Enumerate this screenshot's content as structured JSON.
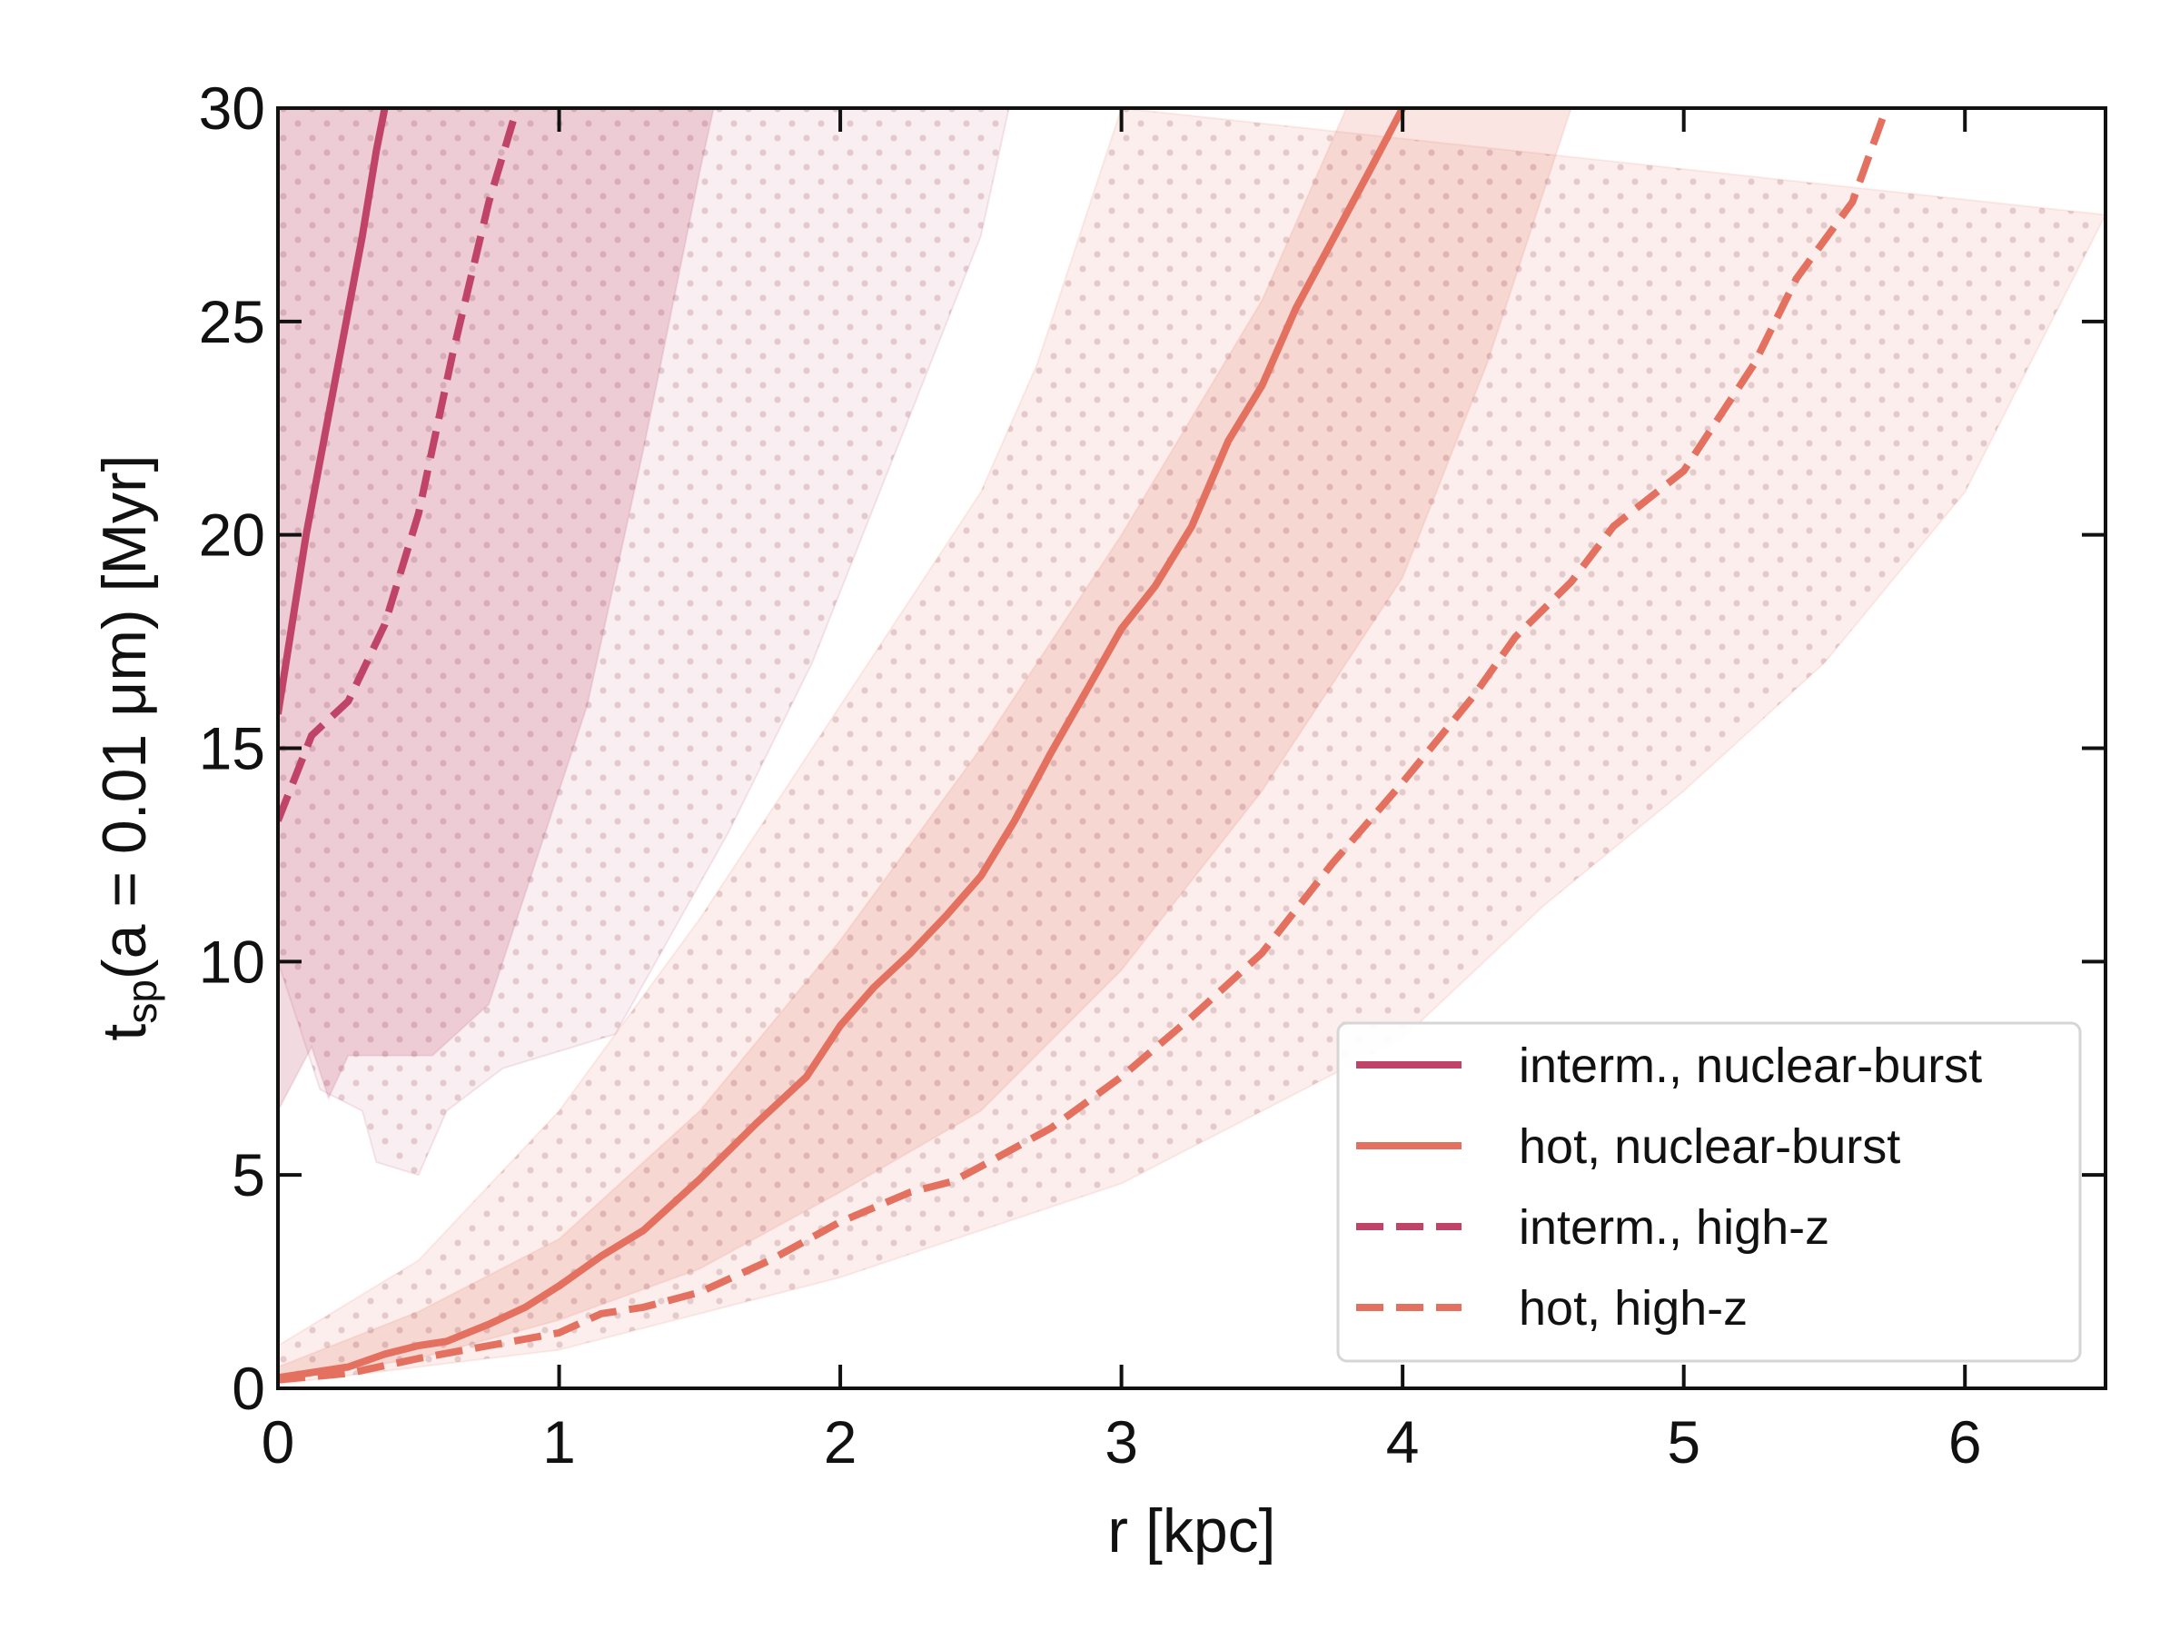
{
  "chart_data": {
    "type": "line",
    "title": "",
    "xlabel": "r [kpc]",
    "ylabel": {
      "prefix": "t",
      "subscript": "sp",
      "suffix": "(a = 0.01 μm) [Myr]"
    },
    "xlim": [
      0,
      6.5
    ],
    "ylim": [
      0,
      30
    ],
    "xticks": [
      0,
      1,
      2,
      3,
      4,
      5,
      6
    ],
    "yticks": [
      0,
      5,
      10,
      15,
      20,
      25,
      30
    ],
    "xtick_labels": [
      "0",
      "1",
      "2",
      "3",
      "4",
      "5",
      "6"
    ],
    "ytick_labels": [
      "0",
      "5",
      "10",
      "15",
      "20",
      "25",
      "30"
    ],
    "grid": false,
    "legend_position": "bottom-right",
    "colors": {
      "interm": "#c04468",
      "hot": "#e4705f"
    },
    "bands": [
      {
        "name": "interm-nuclear-burst-band",
        "color": "#c04468",
        "opacity": 0.2,
        "hatch": "none",
        "lower": [
          [
            0,
            6.5
          ],
          [
            0.12,
            8.0
          ],
          [
            0.18,
            6.8
          ],
          [
            0.25,
            7.8
          ],
          [
            0.55,
            7.8
          ],
          [
            0.75,
            9.0
          ],
          [
            0.9,
            12.0
          ],
          [
            1.1,
            16.0
          ],
          [
            1.3,
            22.0
          ],
          [
            1.5,
            28.5
          ],
          [
            1.55,
            30
          ]
        ],
        "upper": [
          [
            0,
            30
          ],
          [
            1.99,
            30
          ]
        ]
      },
      {
        "name": "interm-high-z-band",
        "color": "#c04468",
        "opacity": 0.09,
        "hatch": "dots",
        "lower": [
          [
            0,
            10.0
          ],
          [
            0.15,
            7.0
          ],
          [
            0.3,
            6.5
          ],
          [
            0.35,
            5.3
          ],
          [
            0.5,
            5.0
          ],
          [
            0.6,
            6.5
          ],
          [
            0.8,
            7.5
          ],
          [
            1.2,
            8.3
          ],
          [
            1.6,
            13.0
          ],
          [
            1.9,
            17.0
          ],
          [
            2.2,
            22.0
          ],
          [
            2.5,
            27.0
          ],
          [
            2.6,
            30
          ]
        ],
        "upper": [
          [
            0,
            30
          ],
          [
            2.65,
            30
          ]
        ]
      },
      {
        "name": "hot-nuclear-burst-band",
        "color": "#e4705f",
        "opacity": 0.18,
        "hatch": "none",
        "lower": [
          [
            0,
            0.2
          ],
          [
            0.5,
            0.7
          ],
          [
            1.0,
            1.6
          ],
          [
            1.5,
            2.8
          ],
          [
            2.0,
            4.6
          ],
          [
            2.5,
            6.5
          ],
          [
            3.0,
            9.8
          ],
          [
            3.5,
            14.0
          ],
          [
            4.0,
            19.0
          ],
          [
            4.3,
            24.0
          ],
          [
            4.6,
            30
          ]
        ],
        "upper": [
          [
            0,
            0.5
          ],
          [
            0.5,
            1.8
          ],
          [
            1.0,
            3.5
          ],
          [
            1.5,
            6.5
          ],
          [
            2.0,
            10.5
          ],
          [
            2.5,
            15.0
          ],
          [
            3.0,
            20.0
          ],
          [
            3.5,
            25.5
          ],
          [
            3.8,
            30
          ]
        ]
      },
      {
        "name": "hot-high-z-band",
        "color": "#e4705f",
        "opacity": 0.12,
        "hatch": "dots",
        "lower": [
          [
            0,
            0.1
          ],
          [
            1.0,
            0.9
          ],
          [
            2.0,
            2.6
          ],
          [
            3.0,
            4.8
          ],
          [
            4.0,
            8.2
          ],
          [
            4.5,
            11.3
          ],
          [
            5.0,
            14.0
          ],
          [
            5.5,
            17.0
          ],
          [
            6.0,
            21.0
          ],
          [
            6.5,
            27.5
          ]
        ],
        "upper": [
          [
            0,
            1.0
          ],
          [
            0.5,
            3.0
          ],
          [
            1.0,
            6.5
          ],
          [
            1.5,
            11.0
          ],
          [
            2.0,
            16.0
          ],
          [
            2.5,
            21.0
          ],
          [
            2.7,
            24.0
          ],
          [
            3.0,
            30
          ]
        ]
      }
    ],
    "series": [
      {
        "name": "interm., nuclear-burst",
        "color": "#c04468",
        "dash": "solid",
        "x": [
          0,
          0.1,
          0.2,
          0.3,
          0.35,
          0.38
        ],
        "y": [
          15.8,
          20.0,
          23.5,
          27.0,
          29.0,
          30.0
        ]
      },
      {
        "name": "hot, nuclear-burst",
        "color": "#e4705f",
        "dash": "solid",
        "x": [
          0,
          0.25,
          0.38,
          0.5,
          0.6,
          0.75,
          0.88,
          1.0,
          1.15,
          1.3,
          1.5,
          1.7,
          1.88,
          2.0,
          2.12,
          2.25,
          2.38,
          2.5,
          2.62,
          2.75,
          2.88,
          3.0,
          3.12,
          3.25,
          3.38,
          3.5,
          3.62,
          3.75,
          3.88,
          4.0
        ],
        "y": [
          0.25,
          0.5,
          0.8,
          1.0,
          1.1,
          1.5,
          1.9,
          2.4,
          3.1,
          3.7,
          4.9,
          6.2,
          7.3,
          8.5,
          9.4,
          10.2,
          11.1,
          12.0,
          13.3,
          14.9,
          16.4,
          17.8,
          18.8,
          20.2,
          22.2,
          23.5,
          25.3,
          26.9,
          28.5,
          30.0
        ]
      },
      {
        "name": "interm., high-z",
        "color": "#c04468",
        "dash": "dashed",
        "x": [
          0,
          0.12,
          0.25,
          0.38,
          0.5,
          0.62,
          0.75,
          0.85
        ],
        "y": [
          13.3,
          15.3,
          16.1,
          17.9,
          20.5,
          24.2,
          27.8,
          30.0
        ]
      },
      {
        "name": "hot, high-z",
        "color": "#e4705f",
        "dash": "dashed",
        "x": [
          0,
          0.25,
          0.5,
          0.75,
          1.0,
          1.15,
          1.3,
          1.5,
          1.75,
          2.0,
          2.25,
          2.4,
          2.5,
          2.75,
          3.0,
          3.25,
          3.5,
          3.75,
          4.0,
          4.25,
          4.4,
          4.6,
          4.75,
          5.0,
          5.25,
          5.4,
          5.6,
          5.72
        ],
        "y": [
          0.2,
          0.35,
          0.7,
          1.0,
          1.3,
          1.75,
          1.9,
          2.25,
          3.0,
          3.9,
          4.6,
          4.85,
          5.2,
          6.1,
          7.3,
          8.7,
          10.2,
          12.3,
          14.2,
          16.2,
          17.6,
          18.9,
          20.2,
          21.5,
          24.0,
          26.0,
          27.8,
          30.0
        ]
      }
    ]
  }
}
